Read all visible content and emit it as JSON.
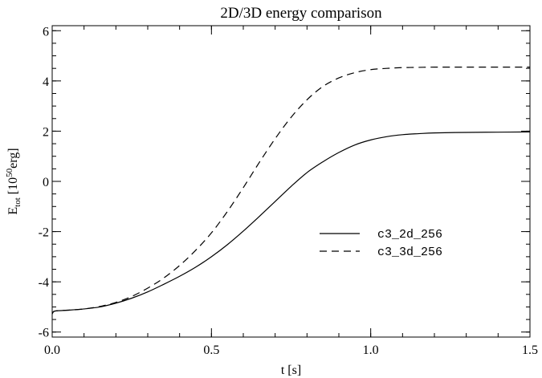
{
  "chart_data": {
    "type": "line",
    "title": "2D/3D energy comparison",
    "xlabel": "t [s]",
    "ylabel": {
      "main": "E",
      "sub": "tot",
      "pre": " [10",
      "sup": "50",
      "post": "erg]"
    },
    "xlim": [
      0,
      1.5
    ],
    "ylim": [
      -6.2,
      6.2
    ],
    "x_ticks": [
      {
        "value": 0.0,
        "label": "0.0"
      },
      {
        "value": 0.5,
        "label": "0.5"
      },
      {
        "value": 1.0,
        "label": "1.0"
      },
      {
        "value": 1.5,
        "label": "1.5"
      }
    ],
    "y_ticks": [
      {
        "value": -6,
        "label": "-6"
      },
      {
        "value": -4,
        "label": "-4"
      },
      {
        "value": -2,
        "label": "-2"
      },
      {
        "value": 0,
        "label": "0"
      },
      {
        "value": 2,
        "label": "2"
      },
      {
        "value": 4,
        "label": "4"
      },
      {
        "value": 6,
        "label": "6"
      }
    ],
    "legend_position": "center-right",
    "series": [
      {
        "name": "c3_2d_256",
        "style": "solid",
        "color": "#000000",
        "x": [
          0.0,
          0.005,
          0.02,
          0.05,
          0.1,
          0.15,
          0.2,
          0.25,
          0.3,
          0.35,
          0.4,
          0.45,
          0.5,
          0.55,
          0.6,
          0.65,
          0.7,
          0.75,
          0.8,
          0.85,
          0.9,
          0.95,
          1.0,
          1.05,
          1.1,
          1.15,
          1.2,
          1.3,
          1.4,
          1.5
        ],
        "y": [
          -5.28,
          -5.18,
          -5.15,
          -5.13,
          -5.08,
          -5.0,
          -4.85,
          -4.65,
          -4.4,
          -4.1,
          -3.78,
          -3.42,
          -3.0,
          -2.52,
          -1.98,
          -1.4,
          -0.8,
          -0.2,
          0.35,
          0.78,
          1.15,
          1.45,
          1.65,
          1.78,
          1.86,
          1.9,
          1.93,
          1.95,
          1.96,
          1.97
        ]
      },
      {
        "name": "c3_3d_256",
        "style": "dashed",
        "color": "#000000",
        "x": [
          0.0,
          0.005,
          0.02,
          0.05,
          0.1,
          0.15,
          0.2,
          0.25,
          0.3,
          0.35,
          0.4,
          0.45,
          0.5,
          0.55,
          0.6,
          0.65,
          0.7,
          0.75,
          0.8,
          0.85,
          0.9,
          0.95,
          1.0,
          1.05,
          1.1,
          1.15,
          1.2,
          1.3,
          1.4,
          1.5
        ],
        "y": [
          -5.28,
          -5.18,
          -5.15,
          -5.13,
          -5.08,
          -4.98,
          -4.82,
          -4.58,
          -4.25,
          -3.85,
          -3.35,
          -2.75,
          -2.05,
          -1.2,
          -0.25,
          0.75,
          1.7,
          2.55,
          3.25,
          3.78,
          4.12,
          4.33,
          4.45,
          4.5,
          4.53,
          4.54,
          4.55,
          4.55,
          4.55,
          4.55
        ]
      }
    ]
  }
}
